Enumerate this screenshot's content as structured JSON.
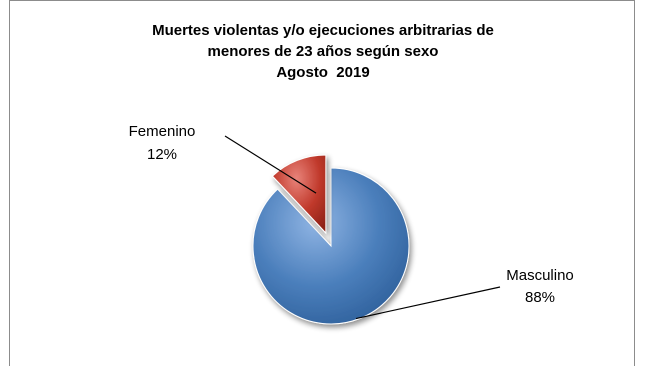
{
  "chart_data": {
    "type": "pie",
    "title_lines": [
      "Muertes violentas y/o ejecuciones arbitrarias de",
      "menores de 23 años según sexo",
      "Agosto  2019"
    ],
    "slices": [
      {
        "name": "Masculino",
        "value": 88,
        "label": "88%",
        "color": "#4a7ebb",
        "exploded": false
      },
      {
        "name": "Femenino",
        "value": 12,
        "label": "12%",
        "color": "#c0392b",
        "exploded": true
      }
    ],
    "legend": "none",
    "data_labels": "outside-with-leader-lines"
  }
}
